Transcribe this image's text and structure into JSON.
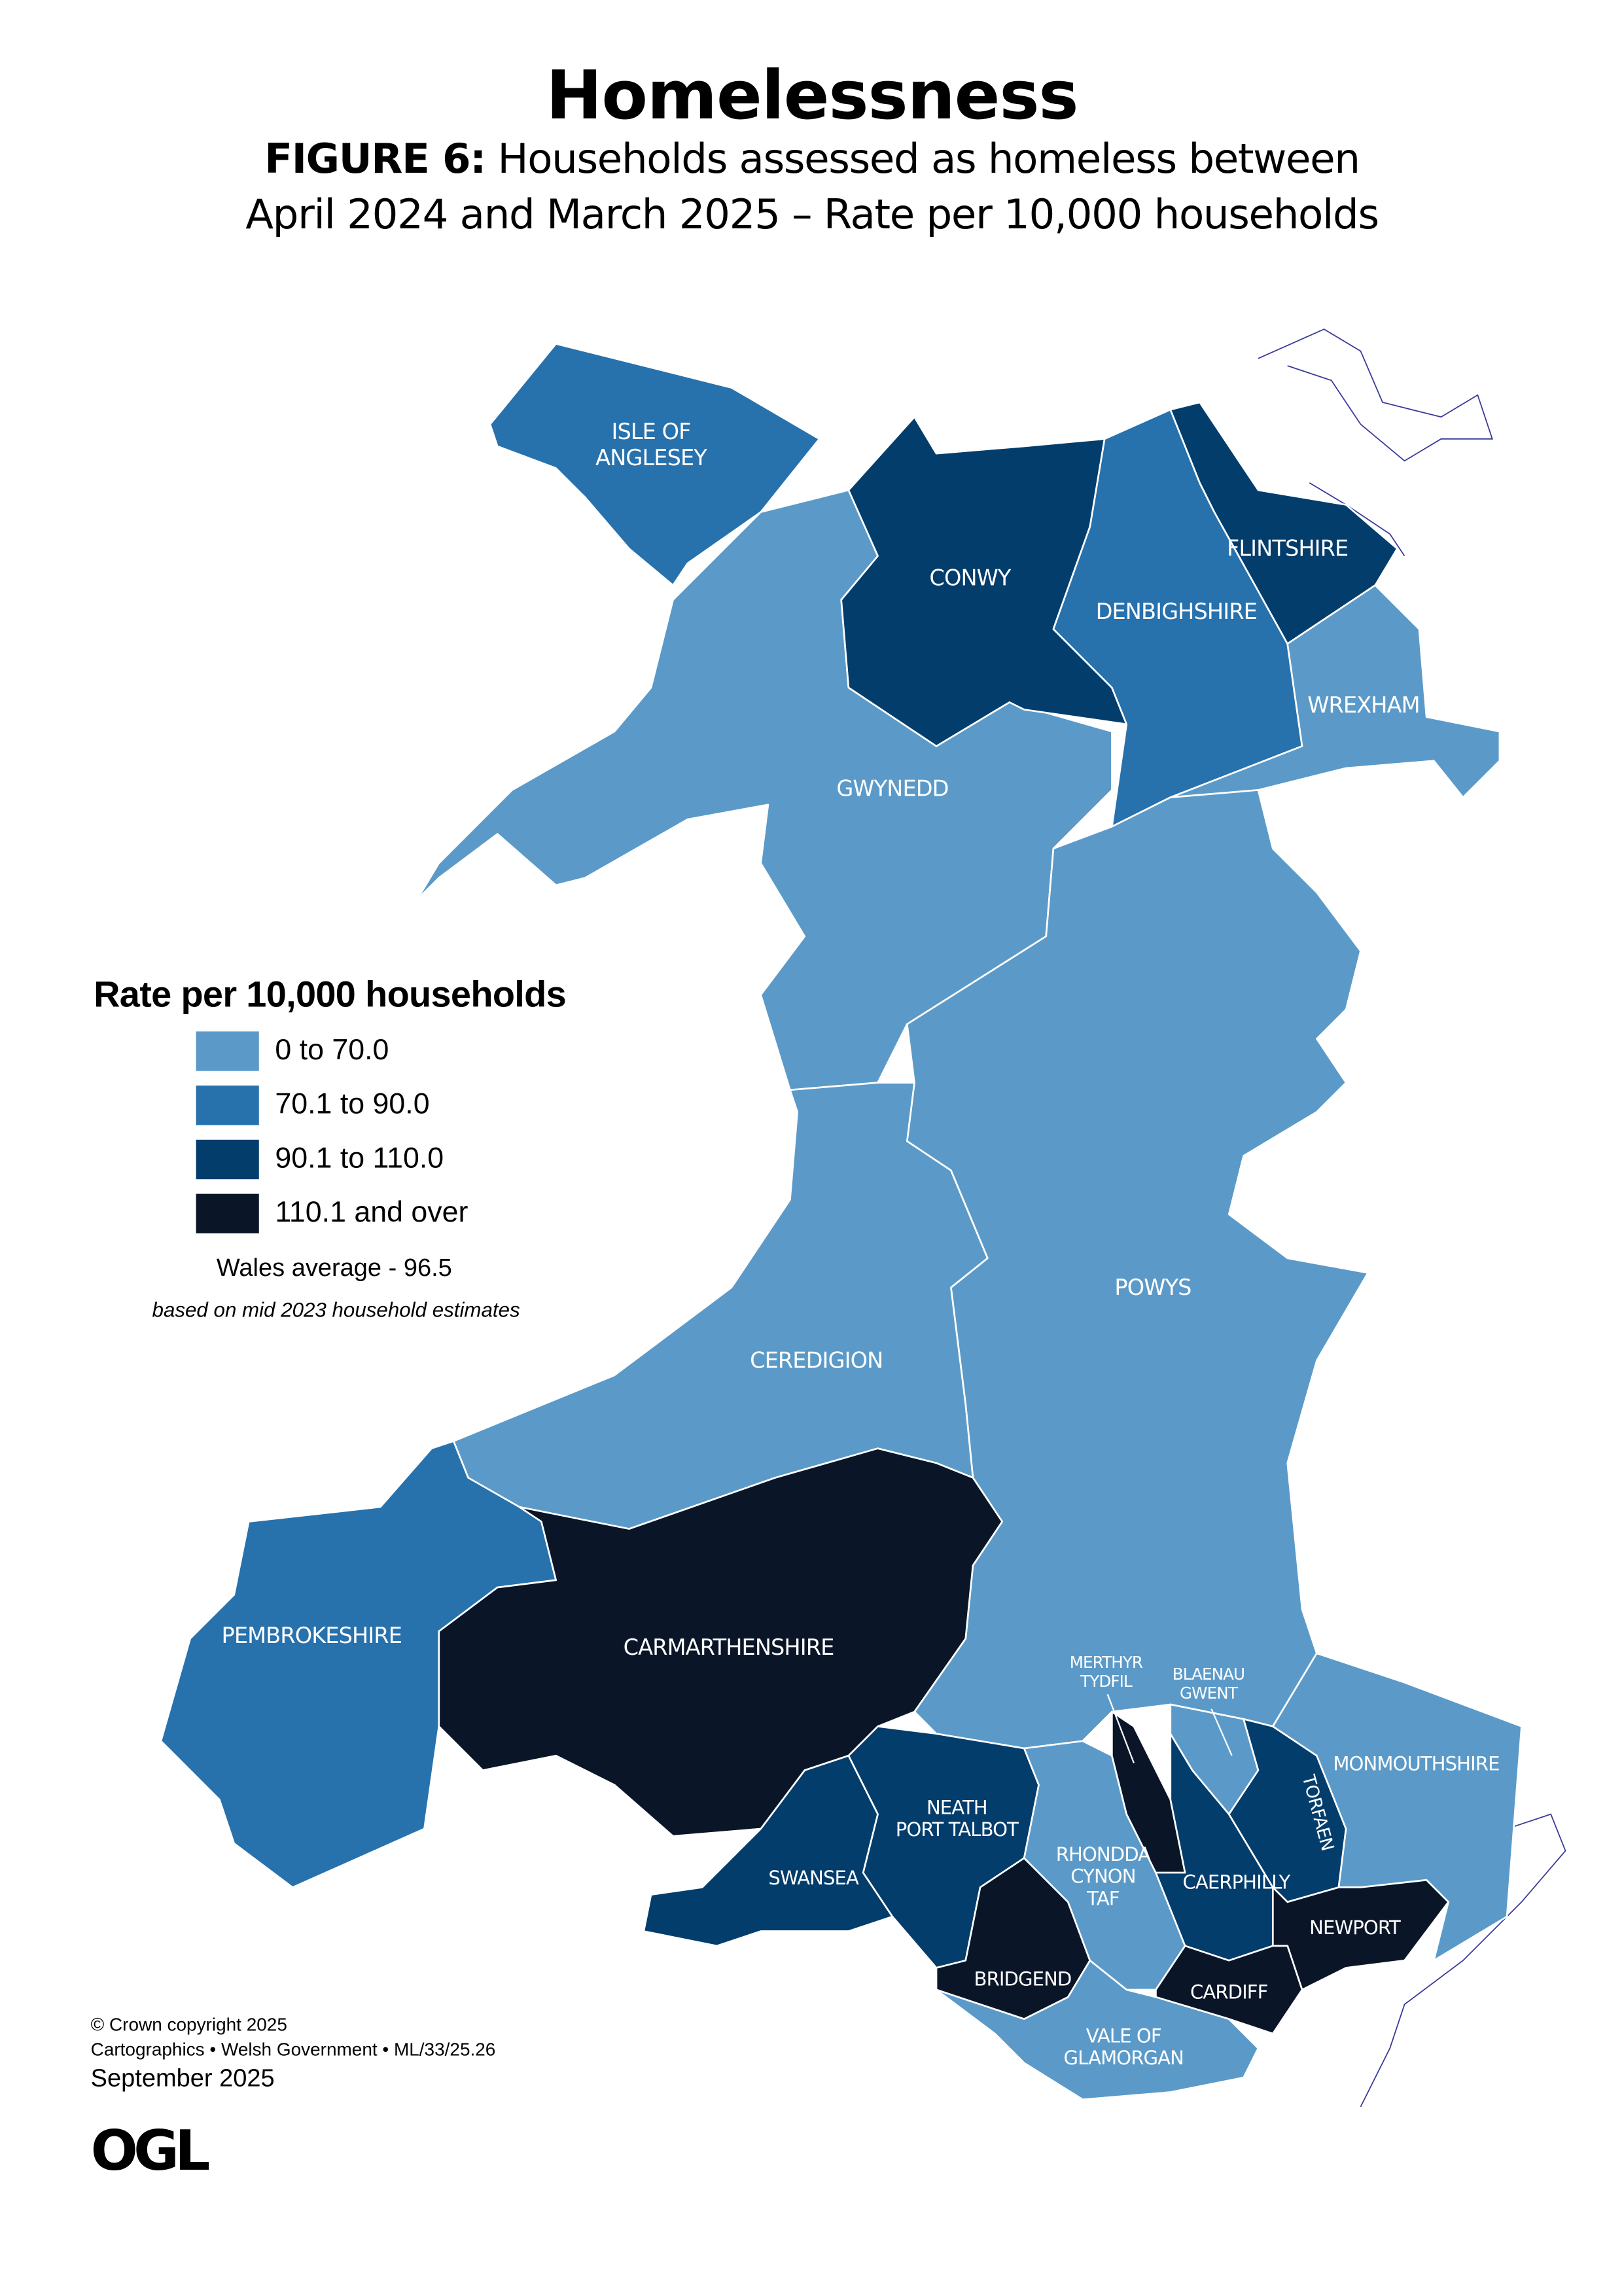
{
  "header": {
    "title": "Homelessness",
    "figure_label": "FIGURE 6:",
    "subtitle_line1_rest": " Households assessed as homeless between",
    "subtitle_line2": "April 2024 and March 2025 – Rate per 10,000 households"
  },
  "legend": {
    "title": "Rate per 10,000 households",
    "classes": [
      {
        "label": "0 to 70.0",
        "color": "#5b9ac8"
      },
      {
        "label": "70.1 to 90.0",
        "color": "#2771ad"
      },
      {
        "label": "90.1 to 110.0",
        "color": "#033d6c"
      },
      {
        "label": "110.1 and over",
        "color": "#0a1628"
      }
    ],
    "average": "Wales average - 96.5",
    "note": "based on mid 2023 household estimates"
  },
  "map_data": {
    "type": "choropleth",
    "regions": {
      "anglesey": {
        "label": [
          "ISLE OF",
          "ANGLESEY"
        ],
        "class": 1
      },
      "gwynedd": {
        "label": [
          "GWYNEDD"
        ],
        "class": 0
      },
      "conwy": {
        "label": [
          "CONWY"
        ],
        "class": 2
      },
      "denbighshire": {
        "label": [
          "DENBIGHSHIRE"
        ],
        "class": 1
      },
      "flintshire": {
        "label": [
          "FLINTSHIRE"
        ],
        "class": 2
      },
      "wrexham": {
        "label": [
          "WREXHAM"
        ],
        "class": 0
      },
      "powys": {
        "label": [
          "POWYS"
        ],
        "class": 0
      },
      "ceredigion": {
        "label": [
          "CEREDIGION"
        ],
        "class": 0
      },
      "pembrokeshire": {
        "label": [
          "PEMBROKESHIRE"
        ],
        "class": 1
      },
      "carmarthenshire": {
        "label": [
          "CARMARTHENSHIRE"
        ],
        "class": 3
      },
      "swansea": {
        "label": [
          "SWANSEA"
        ],
        "class": 2
      },
      "neath_port_talbot": {
        "label": [
          "NEATH",
          "PORT TALBOT"
        ],
        "class": 2
      },
      "bridgend": {
        "label": [
          "BRIDGEND"
        ],
        "class": 3
      },
      "rhondda_cynon_taf": {
        "label": [
          "RHONDDA",
          "CYNON",
          "TAF"
        ],
        "class": 0
      },
      "merthyr_tydfil": {
        "label": [
          "MERTHYR",
          "TYDFIL"
        ],
        "class": 3
      },
      "caerphilly": {
        "label": [
          "CAERPHILLY"
        ],
        "class": 2
      },
      "blaenau_gwent": {
        "label": [
          "BLAENAU",
          "GWENT"
        ],
        "class": 0
      },
      "torfaen": {
        "label": [
          "TORFAEN"
        ],
        "class": 2
      },
      "monmouthshire": {
        "label": [
          "MONMOUTHSHIRE"
        ],
        "class": 0
      },
      "newport": {
        "label": [
          "NEWPORT"
        ],
        "class": 3
      },
      "cardiff": {
        "label": [
          "CARDIFF"
        ],
        "class": 3
      },
      "vale_of_glamorgan": {
        "label": [
          "VALE OF",
          "GLAMORGAN"
        ],
        "class": 0
      }
    }
  },
  "footer": {
    "copyright": "© Crown copyright 2025",
    "credit": "Cartographics • Welsh Government • ML/33/25.26",
    "date": "September 2025",
    "logo": "OGL"
  }
}
